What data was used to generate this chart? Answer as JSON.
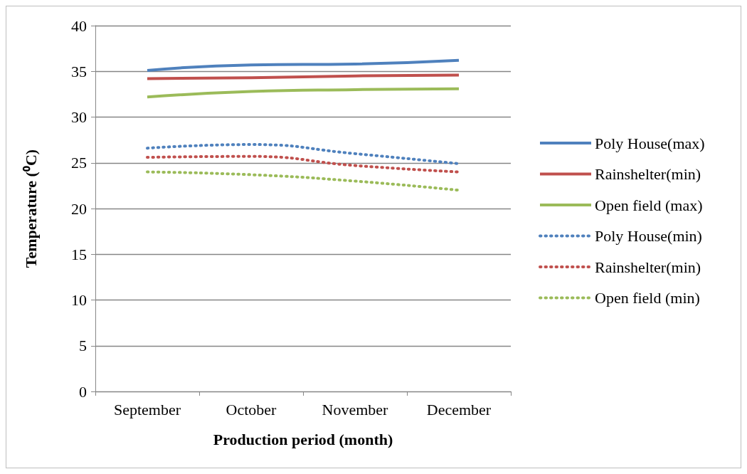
{
  "chart_data": {
    "type": "line",
    "xlabel": "Production period (month)",
    "ylabel": "Temperature (⁰C)",
    "categories": [
      "September",
      "October",
      "November",
      "December"
    ],
    "ylim": [
      0,
      40
    ],
    "yticks": [
      0,
      5,
      10,
      15,
      20,
      25,
      30,
      35,
      40
    ],
    "grid": "y",
    "legend": "right",
    "marker": "none",
    "series": [
      {
        "name": "Poly House(max)",
        "color": "#4f81bd",
        "line_style": "solid",
        "values": [
          35.1,
          35.7,
          35.8,
          36.2
        ]
      },
      {
        "name": "Rainshelter(min)",
        "color": "#c0504d",
        "line_style": "solid",
        "values": [
          34.2,
          34.3,
          34.5,
          34.6
        ]
      },
      {
        "name": "Open field (max)",
        "color": "#9bbb59",
        "line_style": "solid",
        "values": [
          32.2,
          32.8,
          33.0,
          33.1
        ]
      },
      {
        "name": "Poly House(min)",
        "color": "#4f81bd",
        "line_style": "dotted",
        "values": [
          26.6,
          27.0,
          26.0,
          24.9
        ]
      },
      {
        "name": "Rainshelter(min)",
        "color": "#c0504d",
        "line_style": "dotted",
        "values": [
          25.6,
          25.7,
          24.7,
          24.0
        ]
      },
      {
        "name": "Open field (min)",
        "color": "#9bbb59",
        "line_style": "dotted",
        "values": [
          24.0,
          23.7,
          23.0,
          22.0
        ]
      }
    ]
  }
}
